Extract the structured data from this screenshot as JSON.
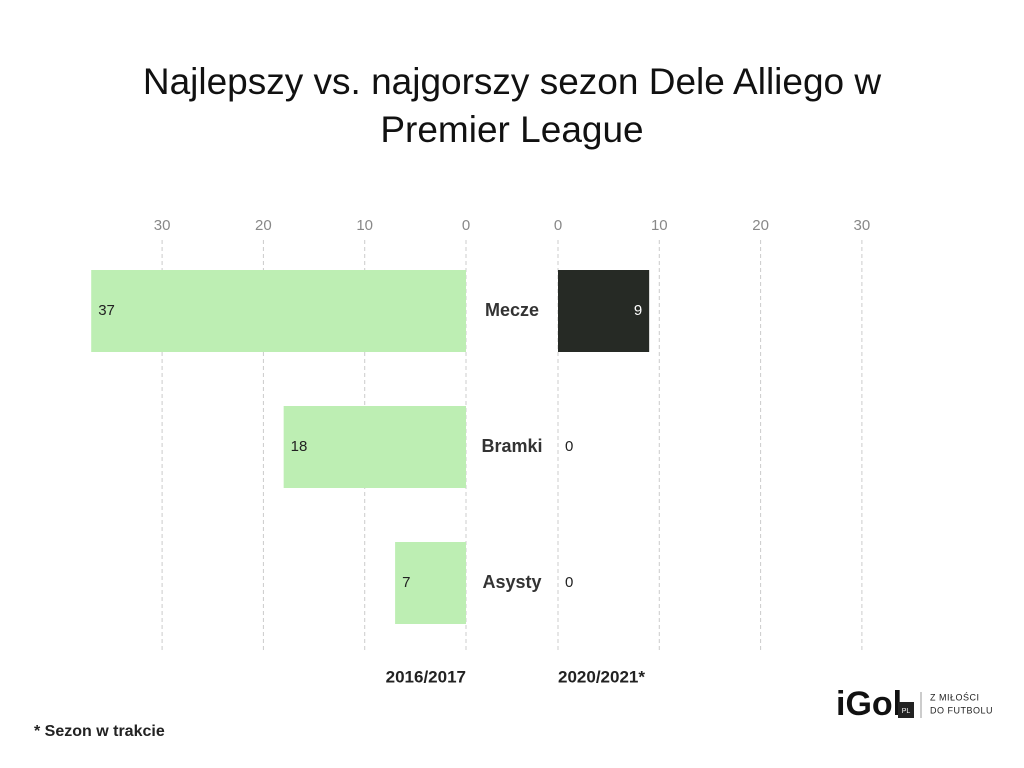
{
  "chart_data": {
    "type": "butterfly",
    "title": "Najlepszy vs. najgorszy sezon Dele Alliego w Premier League",
    "categories": [
      "Mecze",
      "Bramki",
      "Asysty"
    ],
    "series": [
      {
        "name": "2016/2017",
        "color": "#bdeeb3",
        "values": [
          37,
          18,
          7
        ]
      },
      {
        "name": "2020/2021*",
        "color": "#262a25",
        "values": [
          9,
          0,
          0
        ]
      }
    ],
    "xlim": [
      0,
      37
    ],
    "xticks": [
      0,
      10,
      20,
      30
    ],
    "grid": true,
    "footnote": "* Sezon w trakcie",
    "logo": {
      "name": "iGol",
      "badge": "PL",
      "tagline_1": "Z MIŁOŚCI",
      "tagline_2": "DO FUTBOLU"
    }
  }
}
